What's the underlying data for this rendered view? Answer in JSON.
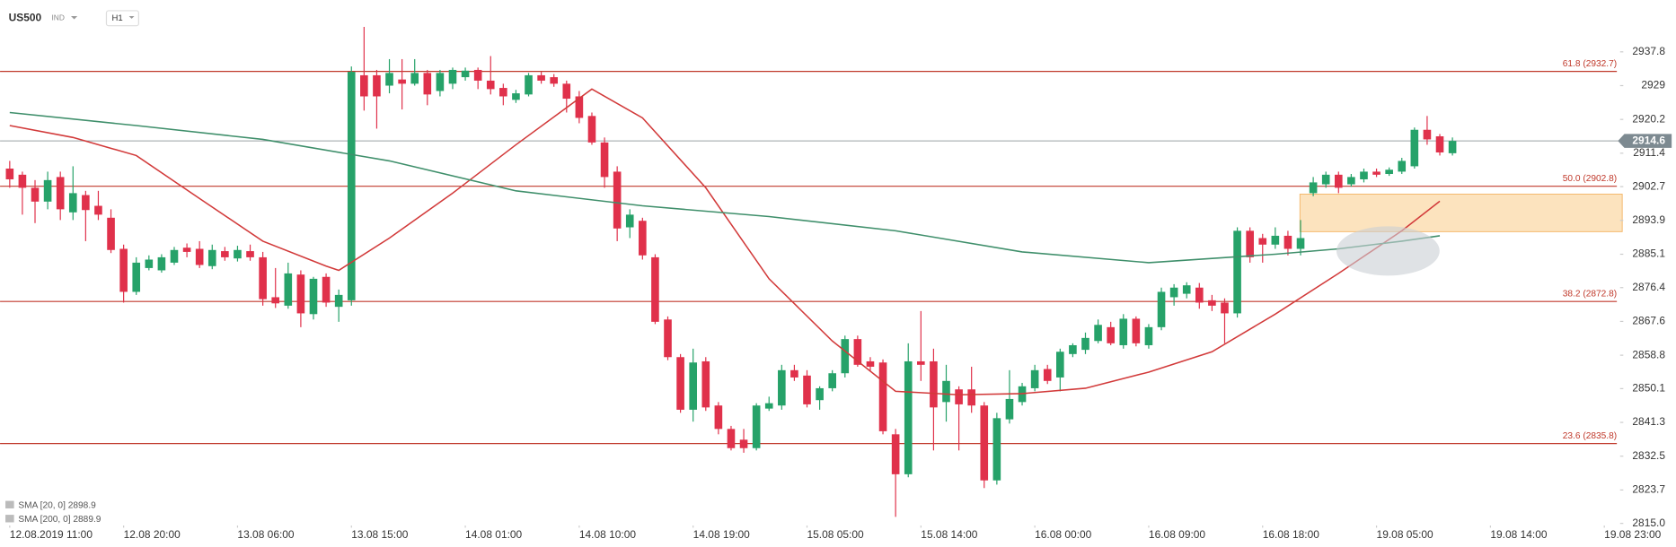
{
  "header": {
    "symbol": "US500",
    "market": "IND",
    "interval": "H1"
  },
  "chart_data": {
    "type": "candlestick",
    "up_color": "#26a269",
    "down_color": "#e0314b",
    "ylim": [
      2814.44,
      2951.3
    ],
    "yticks": [
      2937.8,
      2929.0,
      2920.2,
      2911.4,
      2902.7,
      2893.9,
      2885.1,
      2876.4,
      2867.6,
      2858.8,
      2850.1,
      2841.3,
      2832.5,
      2823.7,
      {
        "value": 2815,
        "label": "2815.0"
      }
    ],
    "xlim": [
      -0.764,
      131.66
    ],
    "xticks": [
      {
        "value": 0,
        "label": "12.08.2019 11:00"
      },
      {
        "value": 9,
        "label": "12.08 20:00"
      },
      {
        "value": 18,
        "label": "13.08 06:00"
      },
      {
        "value": 27,
        "label": "13.08 15:00"
      },
      {
        "value": 36,
        "label": "14.08 01:00"
      },
      {
        "value": 45,
        "label": "14.08 10:00"
      },
      {
        "value": 54,
        "label": "14.08 19:00"
      },
      {
        "value": 63,
        "label": "15.08 05:00"
      },
      {
        "value": 72,
        "label": "15.08 14:00"
      },
      {
        "value": 81,
        "label": "16.08 00:00"
      },
      {
        "value": 90,
        "label": "16.08 09:00"
      },
      {
        "value": 99,
        "label": "16.08 18:00"
      },
      {
        "value": 108,
        "label": "19.08 05:00"
      },
      {
        "value": 117,
        "label": "19.08 14:00"
      },
      {
        "value": 126,
        "label": "19.08 23:00"
      }
    ],
    "open": [
      2907.4,
      2905.8,
      2902.4,
      2898.8,
      2905.2,
      2896.0,
      2900.5,
      2897.7,
      2894.6,
      2886.5,
      2875.3,
      2881.5,
      2880.9,
      2882.9,
      2886.8,
      2886.5,
      2882.0,
      2885.9,
      2884.0,
      2885.9,
      2884.3,
      2873.9,
      2871.7,
      2879.8,
      2869.5,
      2879.2,
      2871.4,
      2873.1,
      2931.7,
      2931.7,
      2929.0,
      2930.6,
      2929.5,
      2932.3,
      2927.6,
      2929.5,
      2931.2,
      2933.1,
      2930.3,
      2928.4,
      2925.3,
      2926.7,
      2931.7,
      2931.2,
      2929.5,
      2926.2,
      2921.1,
      2914.2,
      2906.6,
      2892.1,
      2893.8,
      2884.3,
      2868.1,
      2858.3,
      2844.6,
      2857.2,
      2845.7,
      2839.6,
      2836.8,
      2834.6,
      2844.9,
      2845.7,
      2854.9,
      2853.5,
      2847.1,
      2850.2,
      2854.1,
      2863.0,
      2857.2,
      2856.9,
      2838.2,
      2827.8,
      2857.2,
      2857.2,
      2846.6,
      2849.9,
      2849.9,
      2845.7,
      2826.2,
      2842.1,
      2846.6,
      2850.2,
      2855.2,
      2853.0,
      2859.1,
      2860.2,
      2862.5,
      2866.1,
      2861.4,
      2868.3,
      2861.4,
      2866.1,
      2873.9,
      2874.8,
      2876.4,
      2873.1,
      2872.5,
      2869.7,
      2891.2,
      2889.3,
      2887.6,
      2889.9,
      2886.5,
      2901.0,
      2903.3,
      2905.8,
      2903.3,
      2904.6,
      2906.6,
      2906.0,
      2906.6,
      2908.0,
      2917.5,
      2915.8,
      2911.4
    ],
    "high": [
      2909.4,
      2906.6,
      2904.4,
      2906.6,
      2906.6,
      2908.0,
      2901.6,
      2901.6,
      2896.8,
      2887.6,
      2884.3,
      2884.8,
      2885.1,
      2887.0,
      2887.9,
      2888.5,
      2887.6,
      2887.0,
      2887.3,
      2887.6,
      2885.7,
      2881.5,
      2882.9,
      2880.9,
      2879.2,
      2880.1,
      2875.9,
      2934.0,
      2944.3,
      2933.1,
      2935.9,
      2935.9,
      2935.9,
      2933.1,
      2933.1,
      2933.7,
      2933.7,
      2933.7,
      2936.7,
      2929.5,
      2927.9,
      2932.3,
      2932.6,
      2932.0,
      2930.3,
      2927.6,
      2922.0,
      2915.5,
      2908.0,
      2896.8,
      2894.6,
      2885.1,
      2868.9,
      2859.1,
      2860.5,
      2858.3,
      2846.6,
      2840.4,
      2839.6,
      2846.3,
      2848.0,
      2856.3,
      2856.3,
      2854.9,
      2850.7,
      2854.9,
      2863.9,
      2863.9,
      2858.3,
      2857.7,
      2839.6,
      2861.9,
      2870.3,
      2860.5,
      2856.3,
      2850.7,
      2855.8,
      2846.6,
      2843.8,
      2854.9,
      2851.6,
      2856.3,
      2856.3,
      2860.5,
      2861.9,
      2864.7,
      2868.1,
      2867.5,
      2869.5,
      2868.9,
      2866.9,
      2876.4,
      2877.3,
      2877.8,
      2877.6,
      2874.5,
      2873.6,
      2892.1,
      2892.1,
      2890.4,
      2892.1,
      2891.2,
      2894.0,
      2905.2,
      2906.6,
      2906.6,
      2906.0,
      2907.4,
      2907.4,
      2907.7,
      2910.2,
      2918.1,
      2921.1,
      2916.4,
      2915.5
    ],
    "low": [
      2902.4,
      2895.4,
      2893.2,
      2896.8,
      2894.0,
      2894.0,
      2888.5,
      2894.0,
      2885.4,
      2872.5,
      2874.5,
      2880.9,
      2880.3,
      2882.3,
      2884.3,
      2881.5,
      2881.2,
      2883.4,
      2883.2,
      2883.4,
      2871.7,
      2871.1,
      2870.9,
      2866.1,
      2868.1,
      2871.4,
      2867.5,
      2871.7,
      2922.5,
      2917.8,
      2927.0,
      2922.8,
      2929.0,
      2923.9,
      2926.2,
      2928.1,
      2930.3,
      2928.1,
      2926.7,
      2923.9,
      2924.5,
      2926.2,
      2929.5,
      2928.7,
      2922.0,
      2919.2,
      2913.6,
      2902.4,
      2888.5,
      2889.3,
      2883.7,
      2866.9,
      2857.5,
      2843.8,
      2841.5,
      2844.3,
      2838.2,
      2834.0,
      2833.4,
      2834.0,
      2844.3,
      2844.6,
      2852.1,
      2845.2,
      2844.6,
      2849.4,
      2853.0,
      2855.8,
      2854.7,
      2838.2,
      2816.7,
      2827.0,
      2852.1,
      2834.0,
      2841.5,
      2834.0,
      2843.8,
      2824.2,
      2825.1,
      2841.0,
      2845.7,
      2849.4,
      2851.3,
      2849.4,
      2858.3,
      2859.1,
      2861.9,
      2861.4,
      2860.5,
      2861.1,
      2860.5,
      2865.3,
      2871.7,
      2873.6,
      2870.9,
      2870.3,
      2861.9,
      2868.6,
      2882.9,
      2882.9,
      2886.5,
      2884.8,
      2884.8,
      2900.2,
      2902.4,
      2901.0,
      2902.7,
      2903.8,
      2905.2,
      2905.5,
      2906.0,
      2907.4,
      2913.6,
      2910.8,
      2910.8
    ],
    "close": [
      2904.6,
      2902.4,
      2898.8,
      2904.4,
      2896.8,
      2901.0,
      2896.6,
      2895.4,
      2886.2,
      2875.3,
      2882.9,
      2883.7,
      2884.3,
      2886.2,
      2885.7,
      2882.3,
      2886.2,
      2884.3,
      2886.2,
      2884.3,
      2873.4,
      2872.3,
      2880.1,
      2869.7,
      2878.7,
      2872.5,
      2874.5,
      2932.6,
      2926.2,
      2926.2,
      2932.3,
      2929.5,
      2932.3,
      2926.7,
      2932.3,
      2933.1,
      2932.9,
      2930.3,
      2928.1,
      2926.2,
      2927.0,
      2931.7,
      2930.3,
      2929.5,
      2925.6,
      2920.6,
      2914.2,
      2905.2,
      2891.8,
      2895.4,
      2884.8,
      2867.5,
      2858.3,
      2844.6,
      2856.9,
      2845.2,
      2839.6,
      2834.6,
      2834.6,
      2845.7,
      2846.3,
      2854.9,
      2853.0,
      2846.0,
      2850.2,
      2854.1,
      2863.0,
      2856.3,
      2855.8,
      2839.0,
      2827.8,
      2857.2,
      2856.3,
      2845.2,
      2852.1,
      2846.0,
      2845.7,
      2826.2,
      2842.4,
      2847.4,
      2850.7,
      2854.9,
      2852.1,
      2859.7,
      2861.4,
      2863.3,
      2866.7,
      2861.9,
      2868.3,
      2861.9,
      2866.1,
      2875.3,
      2876.4,
      2877.0,
      2872.5,
      2871.7,
      2869.7,
      2891.2,
      2884.3,
      2887.6,
      2889.9,
      2886.5,
      2889.3,
      2903.8,
      2905.8,
      2902.4,
      2905.2,
      2906.6,
      2905.8,
      2907.1,
      2909.4,
      2917.5,
      2915.0,
      2911.6,
      2914.6
    ],
    "lines": [
      {
        "name": "SMA [20, 0]",
        "value_label": "2898.9",
        "color": "#d23a3a",
        "x": [
          0,
          5,
          10,
          15,
          20,
          25,
          26,
          30,
          35,
          40,
          46,
          50,
          55,
          60,
          65,
          70,
          75,
          80,
          85,
          90,
          95,
          100,
          105,
          110,
          113
        ],
        "values": [
          2918.6,
          2915.5,
          2910.8,
          2899.6,
          2888.5,
          2882.0,
          2880.9,
          2889.3,
          2901.0,
          2913.6,
          2928.1,
          2920.6,
          2902.4,
          2878.7,
          2862.5,
          2849.4,
          2848.5,
          2848.8,
          2850.2,
          2854.4,
          2859.7,
          2869.5,
          2880.1,
          2891.2,
          2898.9
        ]
      },
      {
        "name": "SMA [200, 0]",
        "value_label": "2889.9",
        "color": "#3f8f6b",
        "x": [
          0,
          10,
          20,
          30,
          40,
          50,
          60,
          70,
          80,
          90,
          100,
          105,
          110,
          113
        ],
        "values": [
          2922.0,
          2918.6,
          2915.0,
          2909.4,
          2901.6,
          2897.7,
          2894.9,
          2891.2,
          2885.7,
          2882.9,
          2885.1,
          2886.5,
          2888.5,
          2889.9
        ]
      }
    ],
    "levels": [
      {
        "value": 2932.7,
        "label": "61.8 (2932.7)"
      },
      {
        "value": 2902.8,
        "label": "50.0 (2902.8)"
      },
      {
        "value": 2872.8,
        "label": "38.2 (2872.8)"
      },
      {
        "value": 2835.8,
        "label": "23.6 (2835.8)"
      }
    ],
    "level_color": "#c0392b",
    "last_price": 2914.6
  }
}
